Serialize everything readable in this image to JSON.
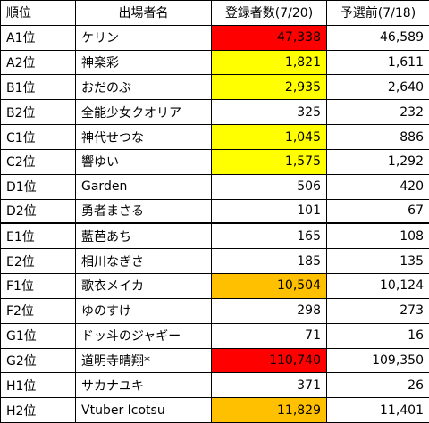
{
  "table": {
    "header": [
      "順位",
      "出場者名",
      "登録者数(7/20)",
      "予選前(7/18)"
    ],
    "rows": [
      {
        "rank": "A1位",
        "name": "ケリン",
        "registered": "47,338",
        "preliminary": "46,589",
        "highlight": "#ff0000"
      },
      {
        "rank": "A2位",
        "name": "神楽彩",
        "registered": "1,821",
        "preliminary": "1,611",
        "highlight": "#ffff00"
      },
      {
        "rank": "B1位",
        "name": "おだのぶ",
        "registered": "2,935",
        "preliminary": "2,640",
        "highlight": "#ffff00"
      },
      {
        "rank": "B2位",
        "name": "全能少女クオリア",
        "registered": "325",
        "preliminary": "232"
      },
      {
        "rank": "C1位",
        "name": "神代せつな",
        "registered": "1,045",
        "preliminary": "886",
        "highlight": "#ffff00"
      },
      {
        "rank": "C2位",
        "name": "響ゆい",
        "registered": "1,575",
        "preliminary": "1,292",
        "highlight": "#ffff00"
      },
      {
        "rank": "D1位",
        "name": "Garden",
        "registered": "506",
        "preliminary": "420"
      },
      {
        "rank": "D2位",
        "name": "勇者まさる",
        "registered": "101",
        "preliminary": "67"
      },
      {
        "rank": "E1位",
        "name": "藍芭あち",
        "registered": "165",
        "preliminary": "108"
      },
      {
        "rank": "E2位",
        "name": "相川なぎさ",
        "registered": "185",
        "preliminary": "135"
      },
      {
        "rank": "F1位",
        "name": "歌衣メイカ",
        "registered": "10,504",
        "preliminary": "10,124",
        "highlight": "#ffc000"
      },
      {
        "rank": "F2位",
        "name": "ゆのすけ",
        "registered": "298",
        "preliminary": "273"
      },
      {
        "rank": "G1位",
        "name": "ドッ斗のジャギー",
        "registered": "71",
        "preliminary": "16"
      },
      {
        "rank": "G2位",
        "name": "道明寺晴翔*",
        "registered": "110,740",
        "preliminary": "109,350",
        "highlight": "#ff0000"
      },
      {
        "rank": "H1位",
        "name": "サカナユキ",
        "registered": "371",
        "preliminary": "26"
      },
      {
        "rank": "H2位",
        "name": "Vtuber Icotsu",
        "registered": "11,829",
        "preliminary": "11,401",
        "highlight": "#ffc000"
      }
    ]
  }
}
